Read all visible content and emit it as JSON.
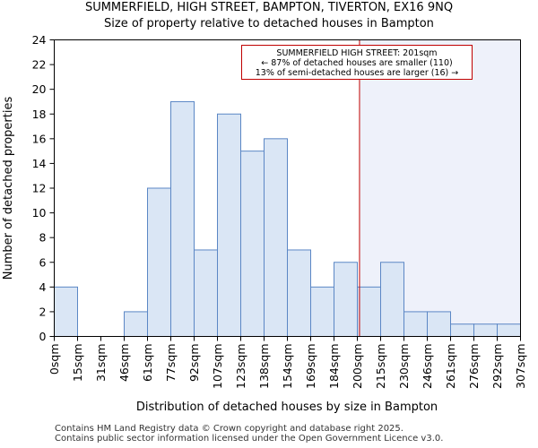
{
  "chart_data": {
    "type": "bar",
    "title": "SUMMERFIELD, HIGH STREET, BAMPTON, TIVERTON, EX16 9NQ",
    "subtitle": "Size of property relative to detached houses in Bampton",
    "xlabel": "Distribution of detached houses by size in Bampton",
    "ylabel": "Number of detached properties",
    "x_tick_labels": [
      "0sqm",
      "15sqm",
      "31sqm",
      "46sqm",
      "61sqm",
      "77sqm",
      "92sqm",
      "107sqm",
      "123sqm",
      "138sqm",
      "154sqm",
      "169sqm",
      "184sqm",
      "200sqm",
      "215sqm",
      "230sqm",
      "246sqm",
      "261sqm",
      "276sqm",
      "292sqm",
      "307sqm"
    ],
    "values": [
      4,
      0,
      0,
      2,
      12,
      19,
      7,
      18,
      15,
      16,
      7,
      4,
      6,
      4,
      6,
      2,
      2,
      1,
      1,
      1
    ],
    "ylim": [
      0,
      24
    ],
    "y_ticks": [
      0,
      2,
      4,
      6,
      8,
      10,
      12,
      14,
      16,
      18,
      20,
      22,
      24
    ],
    "marker_value_sqm": 201,
    "annotation": [
      "SUMMERFIELD HIGH STREET: 201sqm",
      "← 87% of detached houses are smaller (110)",
      "13% of semi-detached houses are larger (16) →"
    ],
    "colors": {
      "bar_fill": "#dae6f5",
      "bar_stroke": "#5b87c5",
      "highlight_region": "#eef1fa",
      "marker": "#c00000"
    },
    "grid": false,
    "legend": "none"
  },
  "footer": {
    "line1": "Contains HM Land Registry data © Crown copyright and database right 2025.",
    "line2": "Contains public sector information licensed under the Open Government Licence v3.0."
  }
}
